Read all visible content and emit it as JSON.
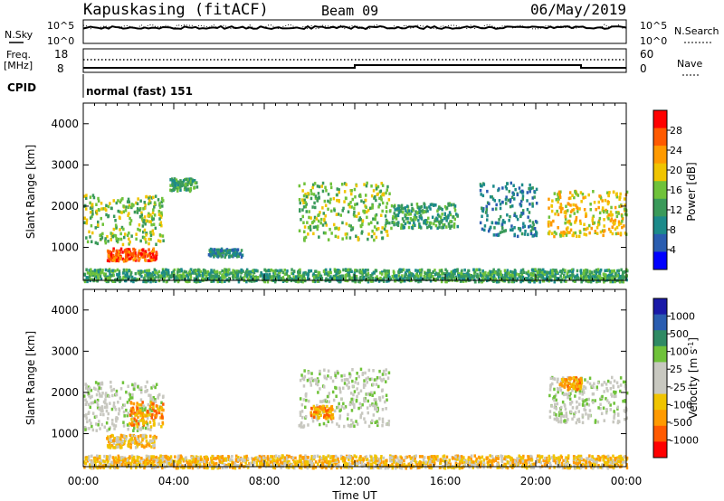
{
  "header": {
    "station": "Kapuskasing (fitACF)",
    "beam": "Beam 09",
    "date": "06/May/2019"
  },
  "status_panels": {
    "nsky_label": "N.Sky",
    "nsearch_label": "N.Search",
    "nsky_ticks": [
      "10^5",
      "10^0"
    ],
    "nsearch_ticks": [
      "10^5",
      "10^0"
    ],
    "freq_label": "Freq.",
    "freq_unit": "[MHz]",
    "freq_ticks": [
      "18",
      "8"
    ],
    "nave_label": "Nave",
    "nave_ticks": [
      "60",
      "0"
    ],
    "cpid_label": "CPID",
    "cpid_value": "normal (fast) 151"
  },
  "colors": {
    "power_scale": [
      "#0000ff",
      "#2a5db0",
      "#1c8a8a",
      "#3a9a5a",
      "#6fc23a",
      "#f0c400",
      "#ff9a00",
      "#ff5a00",
      "#ff0000"
    ],
    "velocity_scale": [
      "#1a1aa8",
      "#2a5db0",
      "#2f8a64",
      "#6fc23a",
      "#c8c8c0",
      "#c8c8c0",
      "#f0c400",
      "#ff9a00",
      "#ff5a00",
      "#ff0000"
    ]
  },
  "chart_data": [
    {
      "type": "heatmap",
      "title": "",
      "xlabel": "",
      "ylabel": "Slant Range [km]",
      "xlim": [
        "00:00",
        "00:00"
      ],
      "ylim": [
        200,
        4500
      ],
      "yticks": [
        1000,
        2000,
        3000,
        4000
      ],
      "colorbar": {
        "label": "Power [dB]",
        "ticks": [
          "28",
          "24",
          "20",
          "16",
          "12",
          "8",
          "4"
        ],
        "range": [
          0,
          30
        ]
      },
      "regions": [
        {
          "t_start": 0.0,
          "t_end": 3.5,
          "r_start": 1100,
          "r_end": 2300,
          "value": 16
        },
        {
          "t_start": 1.0,
          "t_end": 3.2,
          "r_start": 700,
          "r_end": 1000,
          "value": 28
        },
        {
          "t_start": 3.8,
          "t_end": 5.0,
          "r_start": 2400,
          "r_end": 2700,
          "value": 12
        },
        {
          "t_start": 5.5,
          "t_end": 7.0,
          "r_start": 800,
          "r_end": 1000,
          "value": 6
        },
        {
          "t_start": 9.5,
          "t_end": 13.5,
          "r_start": 1200,
          "r_end": 2600,
          "value": 14
        },
        {
          "t_start": 13.5,
          "t_end": 16.5,
          "r_start": 1500,
          "r_end": 2100,
          "value": 10
        },
        {
          "t_start": 17.5,
          "t_end": 20.0,
          "r_start": 1300,
          "r_end": 2600,
          "value": 8
        },
        {
          "t_start": 20.5,
          "t_end": 24.0,
          "r_start": 1300,
          "r_end": 2400,
          "value": 18
        },
        {
          "t_start": 0.0,
          "t_end": 24.0,
          "r_start": 200,
          "r_end": 500,
          "value": 12
        }
      ]
    },
    {
      "type": "heatmap",
      "title": "",
      "xlabel": "Time UT",
      "ylabel": "Slant Range [km]",
      "xlim": [
        "00:00",
        "00:00"
      ],
      "xticks": [
        "00:00",
        "04:00",
        "08:00",
        "12:00",
        "16:00",
        "20:00",
        "00:00"
      ],
      "ylim": [
        200,
        4500
      ],
      "yticks": [
        1000,
        2000,
        3000,
        4000
      ],
      "colorbar": {
        "label": "Velocity [m s",
        "label_sup": "-1",
        "label_end": "]",
        "ticks": [
          "1000",
          "500",
          "100",
          "25",
          "-25",
          "-100",
          "-500",
          "-1000"
        ],
        "range": [
          -1000,
          1000
        ]
      },
      "regions": [
        {
          "t_start": 0.0,
          "t_end": 3.5,
          "r_start": 1100,
          "r_end": 2300,
          "value": 0
        },
        {
          "t_start": 1.0,
          "t_end": 3.2,
          "r_start": 700,
          "r_end": 1000,
          "value": -50
        },
        {
          "t_start": 2.0,
          "t_end": 3.5,
          "r_start": 1200,
          "r_end": 1800,
          "value": -300
        },
        {
          "t_start": 9.5,
          "t_end": 13.5,
          "r_start": 1200,
          "r_end": 2600,
          "value": 0
        },
        {
          "t_start": 10.0,
          "t_end": 11.0,
          "r_start": 1400,
          "r_end": 1700,
          "value": -400
        },
        {
          "t_start": 20.5,
          "t_end": 24.0,
          "r_start": 1300,
          "r_end": 2400,
          "value": 0
        },
        {
          "t_start": 21.0,
          "t_end": 22.0,
          "r_start": 2100,
          "r_end": 2400,
          "value": -150
        },
        {
          "t_start": 0.0,
          "t_end": 24.0,
          "r_start": 200,
          "r_end": 500,
          "value": -60
        }
      ]
    }
  ]
}
